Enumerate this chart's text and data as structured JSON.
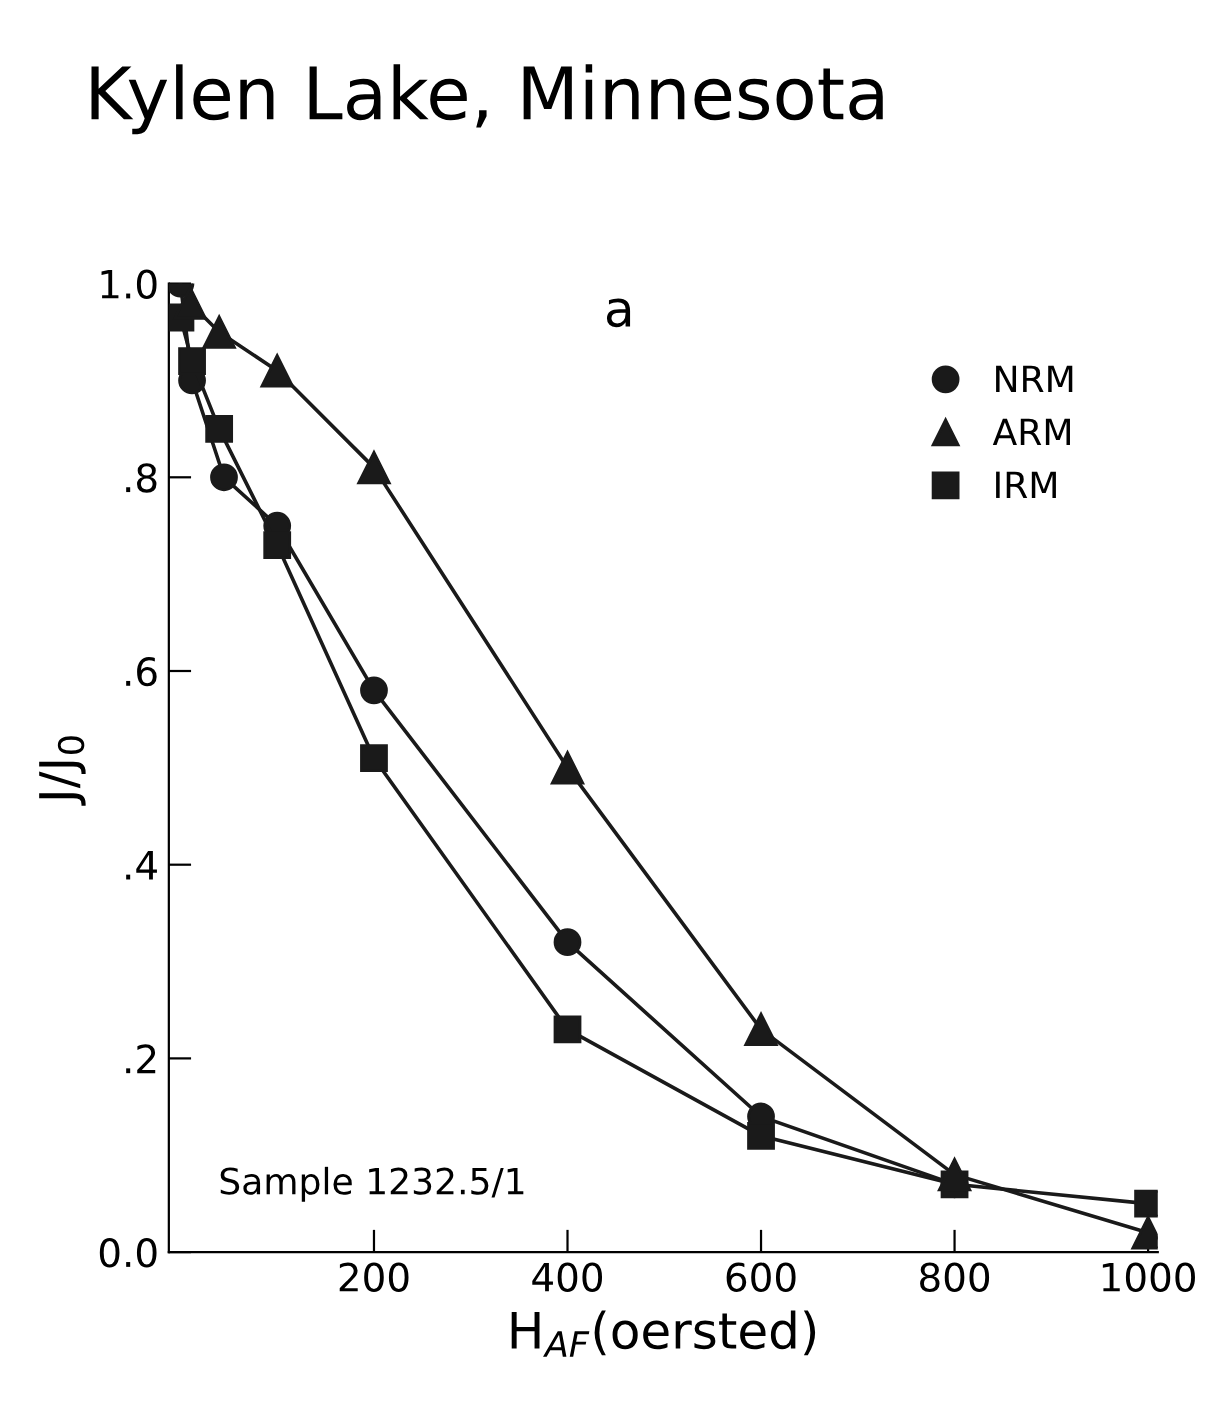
{
  "chart_data": {
    "type": "line",
    "title": "Kylen Lake, Minnesota",
    "xlabel": "H$_{AF}$(oersted)",
    "ylabel": "J/J$_{0}$",
    "annotations": [
      "a",
      "Sample 1232.5/1"
    ],
    "series": [
      {
        "name": "NRM",
        "color": "#1a1a1a",
        "marker": "circle",
        "x": [
          0,
          12,
          45,
          100,
          200,
          400,
          600,
          800
        ],
        "values": [
          1.0,
          0.9,
          0.8,
          0.75,
          0.58,
          0.32,
          0.14,
          0.07
        ]
      },
      {
        "name": "ARM",
        "color": "#1a1a1a",
        "marker": "triangle",
        "x": [
          10,
          40,
          100,
          200,
          400,
          600,
          800,
          1000
        ],
        "values": [
          0.98,
          0.95,
          0.91,
          0.81,
          0.5,
          0.23,
          0.08,
          0.02
        ]
      },
      {
        "name": "IRM",
        "color": "#1a1a1a",
        "marker": "square",
        "x": [
          0,
          12,
          40,
          100,
          200,
          400,
          600,
          800,
          1000
        ],
        "values": [
          0.965,
          0.92,
          0.85,
          0.73,
          0.51,
          0.23,
          0.12,
          0.07,
          0.05
        ]
      }
    ],
    "xlim": [
      -12,
      1010
    ],
    "ylim": [
      0,
      1.0
    ],
    "xticks": [
      200,
      400,
      600,
      800,
      1000
    ],
    "yticks": [
      {
        "value": 0,
        "label": "0.0"
      },
      {
        "value": 0.2,
        "label": ".2"
      },
      {
        "value": 0.4,
        "label": ".4"
      },
      {
        "value": 0.6,
        "label": ".6"
      },
      {
        "value": 0.8,
        "label": ".8"
      },
      {
        "value": 1.0,
        "label": "1.0"
      }
    ],
    "legend": "top right",
    "grid": false,
    "line_style": "solid"
  }
}
